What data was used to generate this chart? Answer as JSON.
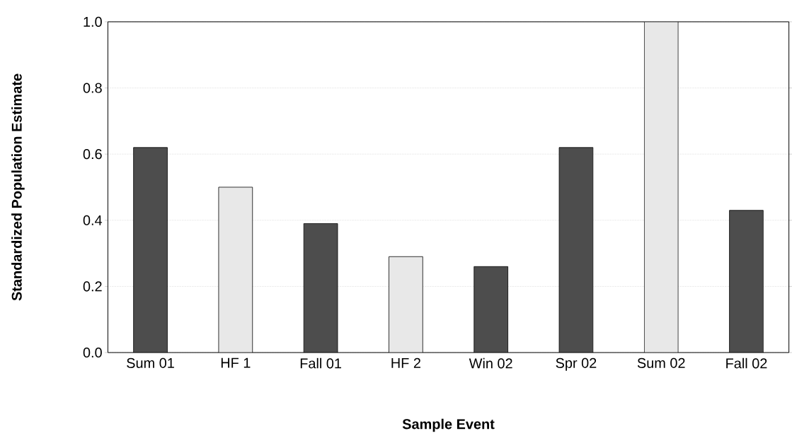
{
  "chart_data": {
    "type": "bar",
    "xlabel": "Sample Event",
    "ylabel": "Standardized Population Estimate",
    "categories": [
      "Sum 01",
      "HF 1",
      "Fall 01",
      "HF 2",
      "Win 02",
      "Spr 02",
      "Sum 02",
      "Fall 02"
    ],
    "values": [
      0.62,
      0.5,
      0.39,
      0.29,
      0.26,
      0.62,
      1.0,
      0.43
    ],
    "colors": [
      "#4d4d4d",
      "#e8e8e8",
      "#4d4d4d",
      "#e8e8e8",
      "#4d4d4d",
      "#4d4d4d",
      "#e8e8e8",
      "#4d4d4d"
    ],
    "ylim": [
      0,
      1.0
    ],
    "yticks": [
      {
        "value": 0,
        "label": "0.0"
      },
      {
        "value": 0.2,
        "label": "0.2"
      },
      {
        "value": 0.4,
        "label": "0.4"
      },
      {
        "value": 0.6,
        "label": "0.6"
      },
      {
        "value": 0.8,
        "label": "0.8"
      },
      {
        "value": 1.0,
        "label": "1.0"
      }
    ],
    "grid": "y"
  }
}
